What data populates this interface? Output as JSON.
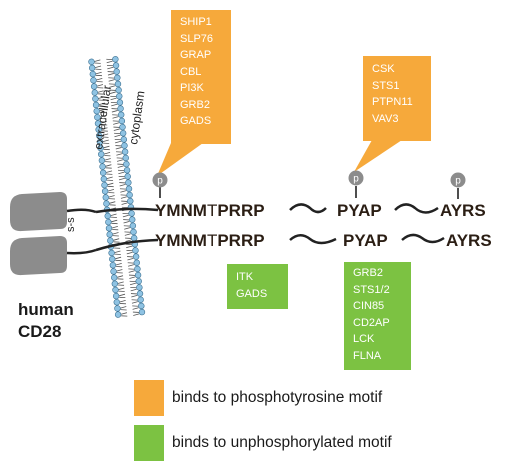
{
  "protein": {
    "line1": "human",
    "line2": "CD28"
  },
  "membrane": {
    "outside": "extracellular",
    "inside": "cytoplasm"
  },
  "disulfide": "s-s",
  "phospho": "p",
  "chain_top": {
    "motif1": "YMNM",
    "linker": "T",
    "motif2": "PRRP",
    "motif3": "PYAP",
    "motif4": "AYRS"
  },
  "chain_bottom": {
    "motif1": "YMNM",
    "linker": "T",
    "motif2": "PRRP",
    "motif3": "PYAP",
    "motif4": "AYRS"
  },
  "binders": {
    "ymnm_phospho": [
      "SHIP1",
      "SLP76",
      "GRAP",
      "CBL",
      "PI3K",
      "GRB2",
      "GADS"
    ],
    "pyap_phospho": [
      "CSK",
      "STS1",
      "PTPN11",
      "VAV3"
    ],
    "prrp_unphospho": [
      "ITK",
      "GADS"
    ],
    "pyap_unphospho": [
      "GRB2",
      "STS1/2",
      "CIN85",
      "CD2AP",
      "LCK",
      "FLNA"
    ]
  },
  "legend": {
    "phospho_label": "binds to phosphotyrosine motif",
    "unphospho_label": "binds to unphosphorylated motif"
  },
  "colors": {
    "phospho": "#f6a93b",
    "unphospho": "#7cc242",
    "domain": "#8c8c8c",
    "membrane_head": "#8fc3e3",
    "text": "#2b2b2b"
  }
}
